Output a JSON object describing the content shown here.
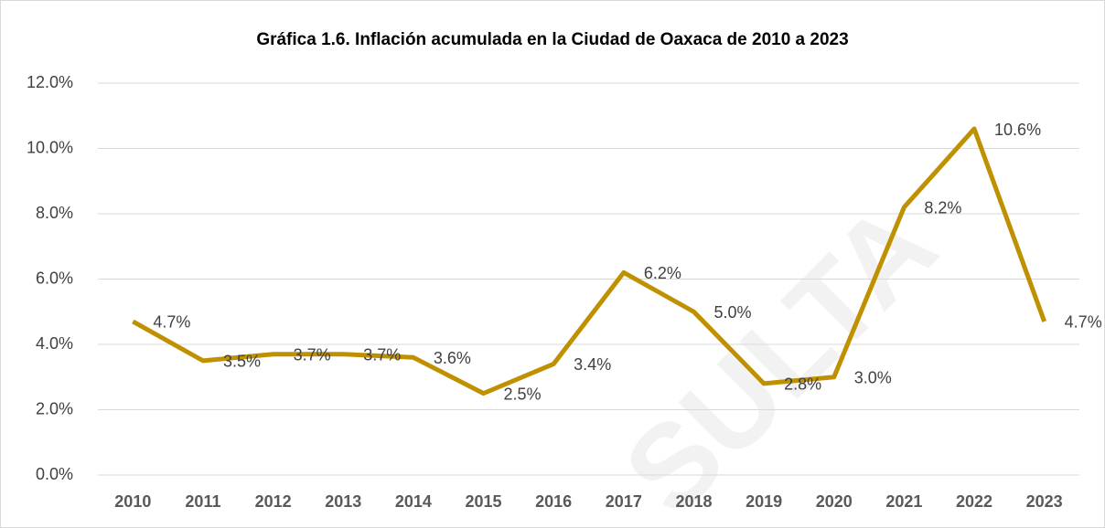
{
  "chart_data": {
    "type": "line",
    "title": "Gráfica 1.6. Inflación acumulada en la Ciudad de Oaxaca de 2010 a 2023",
    "categories": [
      "2010",
      "2011",
      "2012",
      "2013",
      "2014",
      "2015",
      "2016",
      "2017",
      "2018",
      "2019",
      "2020",
      "2021",
      "2022",
      "2023"
    ],
    "series": [
      {
        "name": "Inflación acumulada",
        "color": "#bf9000",
        "values": [
          4.7,
          3.5,
          3.7,
          3.7,
          3.6,
          2.5,
          3.4,
          6.2,
          5.0,
          2.8,
          3.0,
          8.2,
          10.6,
          4.7
        ],
        "value_labels": [
          "4.7%",
          "3.5%",
          "3.7%",
          "3.7%",
          "3.6%",
          "2.5%",
          "3.4%",
          "6.2%",
          "5.0%",
          "2.8%",
          "3.0%",
          "8.2%",
          "10.6%",
          "4.7%"
        ]
      }
    ],
    "ylim": [
      0,
      12
    ],
    "yticks": [
      {
        "value": 0,
        "label": "0.0%"
      },
      {
        "value": 2,
        "label": "2.0%"
      },
      {
        "value": 4,
        "label": "4.0%"
      },
      {
        "value": 6,
        "label": "6.0%"
      },
      {
        "value": 8,
        "label": "8.0%"
      },
      {
        "value": 10,
        "label": "10.0%"
      },
      {
        "value": 12,
        "label": "12.0%"
      }
    ],
    "grid": true,
    "watermark": "SULTA"
  }
}
